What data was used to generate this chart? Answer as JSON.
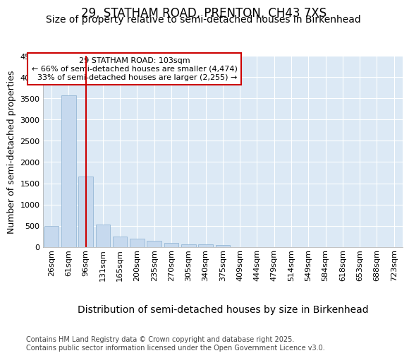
{
  "title_line1": "29, STATHAM ROAD, PRENTON, CH43 7XS",
  "title_line2": "Size of property relative to semi-detached houses in Birkenhead",
  "xlabel": "Distribution of semi-detached houses by size in Birkenhead",
  "ylabel": "Number of semi-detached properties",
  "categories": [
    "26sqm",
    "61sqm",
    "96sqm",
    "131sqm",
    "165sqm",
    "200sqm",
    "235sqm",
    "270sqm",
    "305sqm",
    "340sqm",
    "375sqm",
    "409sqm",
    "444sqm",
    "479sqm",
    "514sqm",
    "549sqm",
    "584sqm",
    "618sqm",
    "653sqm",
    "688sqm",
    "723sqm"
  ],
  "values": [
    500,
    3580,
    1650,
    530,
    240,
    185,
    140,
    90,
    65,
    55,
    45,
    0,
    0,
    0,
    0,
    0,
    0,
    0,
    0,
    0,
    0
  ],
  "bar_color": "#c6d9ee",
  "bar_edge_color": "#8ab0d0",
  "vline_x": 2.0,
  "vline_color": "#cc0000",
  "annotation_line1": "29 STATHAM ROAD: 103sqm",
  "annotation_line2": "← 66% of semi-detached houses are smaller (4,474)",
  "annotation_line3": "  33% of semi-detached houses are larger (2,255) →",
  "ann_box_fc": "#ffffff",
  "ann_box_ec": "#cc0000",
  "ylim_max": 4500,
  "yticks": [
    0,
    500,
    1000,
    1500,
    2000,
    2500,
    3000,
    3500,
    4000,
    4500
  ],
  "footer": "Contains HM Land Registry data © Crown copyright and database right 2025.\nContains public sector information licensed under the Open Government Licence v3.0.",
  "fig_bg": "#ffffff",
  "plot_bg": "#dce9f5",
  "grid_color": "#ffffff",
  "title_fs": 12,
  "sub_fs": 10,
  "tick_fs": 8,
  "xlabel_fs": 10,
  "ylabel_fs": 9,
  "ann_fs": 8,
  "footer_fs": 7
}
